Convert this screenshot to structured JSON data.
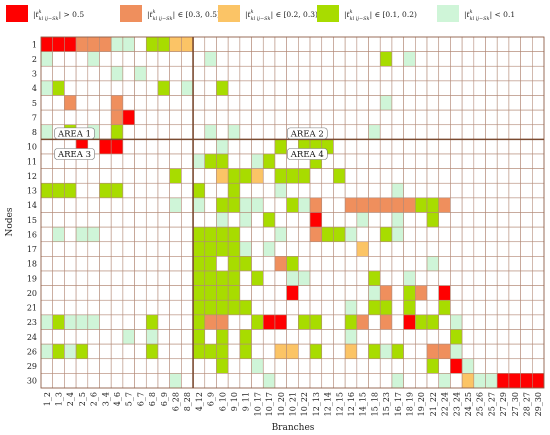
{
  "chart_data": {
    "type": "heatmap",
    "xlabel": "Branches",
    "ylabel": "Nodes",
    "rows": [
      "1",
      "2",
      "3",
      "4",
      "5",
      "7",
      "8",
      "10",
      "11",
      "12",
      "13",
      "14",
      "15",
      "16",
      "17",
      "18",
      "19",
      "20",
      "21",
      "23",
      "24",
      "26",
      "29",
      "30"
    ],
    "columns": [
      "1_2",
      "1_3",
      "2_4",
      "2_5",
      "2_6",
      "3_4",
      "4_6",
      "5_7",
      "6_7",
      "6_8",
      "6_9",
      "6_28",
      "8_28",
      "4_12",
      "6_9",
      "6_10",
      "9_10",
      "9_11",
      "10_17",
      "10_17",
      "10_20",
      "10_21",
      "10_22",
      "12_13",
      "12_14",
      "12_15",
      "12_16",
      "14_15",
      "15_18",
      "15_23",
      "16_17",
      "18_19",
      "19_20",
      "21_22",
      "22_24",
      "23_24",
      "24_25",
      "25_26",
      "25_27",
      "27_29",
      "27_30",
      "28_27",
      "29_30"
    ],
    "legend": [
      {
        "key": "r",
        "color": "#ff0000",
        "label": "|t",
        "range": "> 0.5"
      },
      {
        "key": "o",
        "color": "#ef8f5d",
        "label": "|t",
        "range": "∈ [0.3, 0.5)"
      },
      {
        "key": "y",
        "color": "#fbc466",
        "label": "|t",
        "range": "∈ [0.2, 0.3)"
      },
      {
        "key": "g",
        "color": "#a8dc00",
        "label": "|t",
        "range": "∈ [0.1, 0.2)"
      },
      {
        "key": "p",
        "color": "#cff5d8",
        "label": "|t",
        "range": "< 0.1"
      }
    ],
    "legend_math": {
      "main": "t",
      "sup": "k",
      "sub": "kl ij−Sk"
    },
    "areas": [
      {
        "label": "AREA 1",
        "col": 0.3,
        "row": 7
      },
      {
        "label": "AREA 2",
        "col": 20.2,
        "row": 7
      },
      {
        "label": "AREA 3",
        "col": 0.3,
        "row": 8
      },
      {
        "label": "AREA 4",
        "col": 20.2,
        "row": 8
      }
    ],
    "divider": {
      "after_col": 12,
      "after_row": 6
    },
    "grid": [
      "rrrooopp.ggyy..............................",
      "p...p.........p..............g.p...........",
      "......p.p..................................",
      "pg........g.p..g...........................",
      "..o...o......................p.............",
      "......or...................................",
      "p.g.p.g.......p.p...........p..............",
      "...r.rr........p....g.ggg..................",
      ".............pgg..pg...g...................",
      "...........g...yggy.ggg..g.................",
      "ggg..gg......g..g...p.........p............",
      "...........p.p.ggpp..gpo..ooooooggo........",
      "...............p.p.g...r...p..p..g.........",
      ".p.pp........gggg...p..oggp..gp............",
      ".............ggggp.p.......y...............",
      ".............gg.gg..og...........p.........",
      ".............gggg.g..pp.....g..p...........",
      ".............gggg....r......po.go.r........",
      ".............ggggg........p.gg.g..g........",
      "pgppp....g...goo..grr.gg..go.o.rgg.p.......",
      ".......p.p...g.g.g........p........g.......",
      "pgpg.....g...ggg.g..yy.g..y.gpg..oop.......",
      "...............g..p..............g.rp......",
      "...........p.......p..........p...p.ypprrrr"
    ]
  }
}
